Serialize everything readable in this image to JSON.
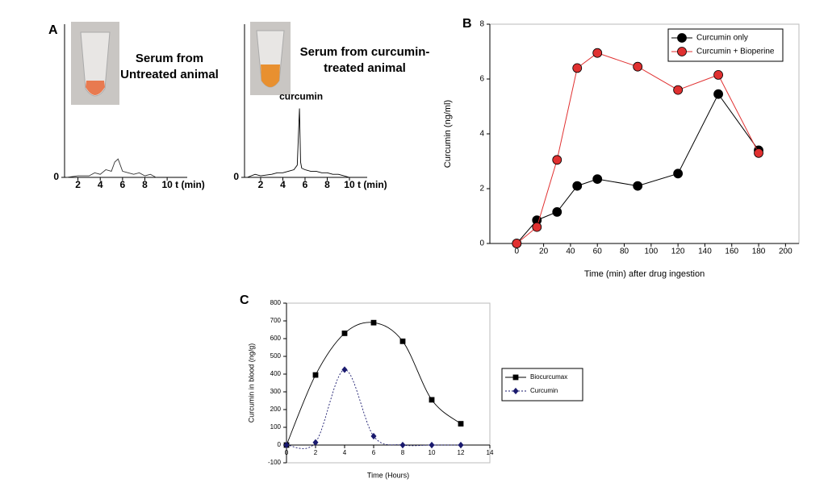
{
  "chart_data": [
    {
      "type": "line",
      "panel": "A",
      "title": [
        "Serum from",
        "Untreated animal"
      ],
      "x_label": "t (min)",
      "xlim": [
        0.8,
        11.8
      ],
      "ylim": [
        0,
        100
      ],
      "xticks": [
        2,
        4,
        6,
        8,
        10
      ],
      "yticks": [
        0
      ],
      "series": [
        {
          "color": "#333333",
          "x": [
            1,
            2,
            3,
            3.5,
            4,
            4.5,
            5,
            5.3,
            5.6,
            6,
            6.5,
            7,
            7.5,
            8,
            8.5,
            9
          ],
          "values": [
            0,
            1,
            1,
            3,
            2,
            5,
            4,
            10,
            12,
            4,
            3,
            2,
            3,
            1,
            2,
            0
          ]
        }
      ]
    },
    {
      "type": "line",
      "title": [
        "Serum from curcumin-",
        "treated animal"
      ],
      "x_label": "t (min)",
      "annotation": "curcumin",
      "xlim": [
        0.55,
        11.6
      ],
      "ylim": [
        0,
        100
      ],
      "xticks": [
        2,
        4,
        6,
        8,
        10
      ],
      "yticks": [
        0
      ],
      "series": [
        {
          "color": "#000000",
          "x": [
            0.8,
            1.5,
            2,
            3,
            3.5,
            4,
            4.5,
            5,
            5.3,
            5.5,
            5.6,
            5.7,
            6,
            6.5,
            7,
            7.5,
            8,
            8.5,
            9,
            9.5,
            10
          ],
          "values": [
            0,
            2,
            1,
            2,
            3,
            3,
            4,
            5,
            8,
            45,
            10,
            6,
            5,
            4,
            4,
            3,
            3,
            2,
            2,
            1,
            0
          ]
        }
      ]
    },
    {
      "type": "line",
      "panel": "B",
      "x_label": "Time (min) after drug ingestion",
      "y_label": "Curcumin (ng/ml)",
      "xlim": [
        -20,
        210
      ],
      "ylim": [
        0,
        8
      ],
      "xticks": [
        0,
        20,
        40,
        60,
        80,
        100,
        120,
        140,
        160,
        180,
        200
      ],
      "yticks": [
        0,
        2,
        4,
        6,
        8
      ],
      "legend": "top-right",
      "series": [
        {
          "name": "Curcumin only",
          "color": "#000000",
          "marker": "circle",
          "x": [
            0,
            15,
            30,
            45,
            60,
            90,
            120,
            150,
            180
          ],
          "values": [
            0,
            0.85,
            1.15,
            2.1,
            2.35,
            2.1,
            2.55,
            5.45,
            3.4
          ]
        },
        {
          "name": "Curcumin + Bioperine",
          "color": "#e03030",
          "marker": "circle",
          "x": [
            0,
            15,
            30,
            45,
            60,
            90,
            120,
            150,
            180
          ],
          "values": [
            0,
            0.6,
            3.05,
            6.4,
            6.95,
            6.45,
            5.6,
            6.15,
            3.3
          ]
        }
      ]
    },
    {
      "type": "line",
      "panel": "C",
      "x_label": "Time (Hours)",
      "y_label": "Curcumin in blood (ng/g)",
      "smooth": true,
      "xlim": [
        0,
        14
      ],
      "ylim": [
        -100,
        800
      ],
      "xticks": [
        0,
        2,
        4,
        6,
        8,
        10,
        12,
        14
      ],
      "yticks": [
        -100,
        0,
        100,
        200,
        300,
        400,
        500,
        600,
        700,
        800
      ],
      "legend": "right",
      "series": [
        {
          "name": "Biocurcumax",
          "color": "#000000",
          "marker": "square",
          "x": [
            0,
            2,
            4,
            6,
            8,
            10,
            12
          ],
          "values": [
            0,
            395,
            630,
            690,
            585,
            255,
            120
          ]
        },
        {
          "name": "Curcumin",
          "color": "#1a1a6e",
          "marker": "diamond",
          "dash": "2,2",
          "x": [
            0,
            2,
            4,
            6,
            8,
            10,
            12
          ],
          "values": [
            0,
            15,
            425,
            50,
            0,
            0,
            0
          ]
        }
      ]
    }
  ]
}
